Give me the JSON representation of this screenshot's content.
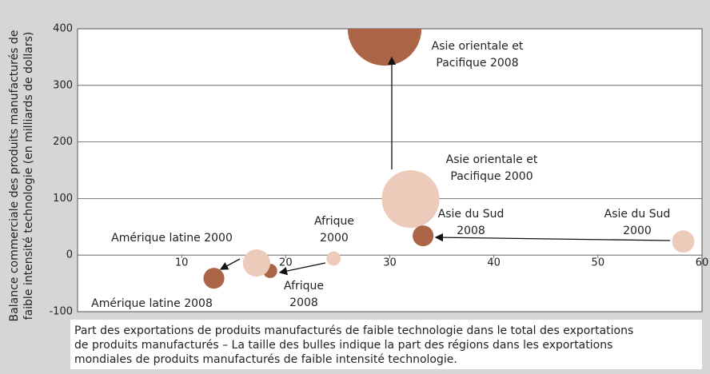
{
  "chart_data": {
    "type": "bubble",
    "y_label": [
      "Balance commerciale des produits manufacturés de",
      "faible intensité technologie (en milliards de dollars)"
    ],
    "x_label": [
      "Part des exportations de produits manufacturés de faible technologie dans le total des exportations",
      "de produits manufacturés – La taille des bulles indique la part des régions dans les exportations",
      "mondiales de produits manufacturés de faible intensité technologie."
    ],
    "points": [
      {
        "label": [
          "Asie orientale et",
          "Pacifique 2008"
        ],
        "x": 29.5,
        "y": 400,
        "size": 35,
        "color": "#ab6446"
      },
      {
        "label": [
          "Asie orientale et",
          "Pacifique 2000"
        ],
        "x": 32.0,
        "y": 99,
        "size": 21.4,
        "color": "#edcbbb"
      },
      {
        "label": [
          "Asie du Sud",
          "2008"
        ],
        "x": 33.2,
        "y": 34,
        "size": 2.8,
        "color": "#ab6446"
      },
      {
        "label": [
          "Asie du Sud",
          "2000"
        ],
        "x": 58.2,
        "y": 24,
        "size": 3.2,
        "color": "#edcbbb"
      },
      {
        "label": [
          "Afrique",
          "2000"
        ],
        "x": 24.6,
        "y": -6,
        "size": 1.3,
        "color": "#edcbbb"
      },
      {
        "label": [
          "Afrique",
          "2008"
        ],
        "x": 18.5,
        "y": -28,
        "size": 1.3,
        "color": "#ab6446"
      },
      {
        "label": [
          "Amérique latine 2000"
        ],
        "x": 17.2,
        "y": -14,
        "size": 4.8,
        "color": "#edcbbb"
      },
      {
        "label": [
          "Amérique latine 2008"
        ],
        "x": 13.1,
        "y": -41,
        "size": 2.8,
        "color": "#ab6446"
      }
    ],
    "xlim": [
      0,
      60
    ],
    "xticks": [
      10,
      20,
      30,
      40,
      50,
      60
    ],
    "ylim": [
      -100,
      400
    ],
    "yticks": [
      -100,
      0,
      100,
      200,
      300,
      400
    ],
    "grid": true
  }
}
